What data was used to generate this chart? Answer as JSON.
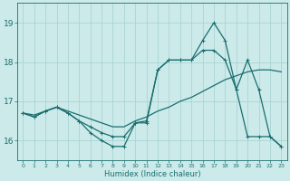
{
  "xlabel": "Humidex (Indice chaleur)",
  "bg_color": "#cceaea",
  "grid_color": "#aad4d4",
  "line_color": "#1a6e6e",
  "xlim": [
    -0.5,
    23.5
  ],
  "ylim": [
    15.5,
    19.5
  ],
  "yticks": [
    16,
    17,
    18,
    19
  ],
  "xticks": [
    0,
    1,
    2,
    3,
    4,
    5,
    6,
    7,
    8,
    9,
    10,
    11,
    12,
    13,
    14,
    15,
    16,
    17,
    18,
    19,
    20,
    21,
    22,
    23
  ],
  "line1_x": [
    0,
    1,
    2,
    3,
    4,
    5,
    6,
    7,
    8,
    9,
    10,
    11,
    12,
    13,
    14,
    15,
    16,
    17,
    18,
    19,
    20,
    21,
    22,
    23
  ],
  "line1_y": [
    16.7,
    16.65,
    16.75,
    16.85,
    16.75,
    16.65,
    16.55,
    16.45,
    16.35,
    16.35,
    16.5,
    16.6,
    16.75,
    16.85,
    17.0,
    17.1,
    17.25,
    17.4,
    17.55,
    17.65,
    17.75,
    17.8,
    17.8,
    17.75
  ],
  "line2_x": [
    0,
    1,
    2,
    3,
    4,
    5,
    6,
    7,
    8,
    9,
    10,
    11,
    12,
    13,
    14,
    15,
    16,
    17,
    18,
    19,
    20,
    21,
    22,
    23
  ],
  "line2_y": [
    16.7,
    16.6,
    16.75,
    16.85,
    16.7,
    16.5,
    16.2,
    16.0,
    15.85,
    15.85,
    16.45,
    16.5,
    17.8,
    18.05,
    18.05,
    18.05,
    18.3,
    18.3,
    18.05,
    17.3,
    16.1,
    16.1,
    16.1,
    15.85
  ],
  "line3_x": [
    0,
    1,
    2,
    3,
    4,
    5,
    6,
    7,
    8,
    9,
    10,
    11,
    12,
    13,
    14,
    15,
    16,
    17,
    18,
    19,
    20,
    21,
    22,
    23
  ],
  "line3_y": [
    16.7,
    16.6,
    16.75,
    16.85,
    16.7,
    16.5,
    16.35,
    16.2,
    16.1,
    16.1,
    16.45,
    16.45,
    17.8,
    18.05,
    18.05,
    18.05,
    18.55,
    19.0,
    18.55,
    17.3,
    18.05,
    17.3,
    16.1,
    15.85
  ]
}
